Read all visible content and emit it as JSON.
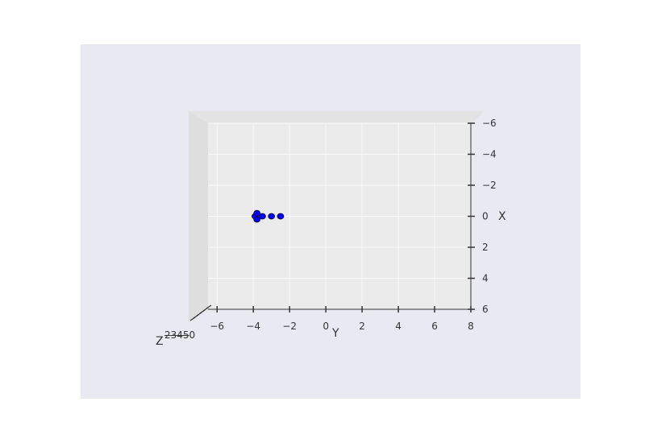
{
  "chart_data": {
    "type": "scatter",
    "projection": "3d",
    "view": "top-down",
    "title": "",
    "xlabel": "X",
    "ylabel": "Y",
    "zlabel": "Z",
    "x_ticks": [
      "−6",
      "−4",
      "−2",
      "0",
      "2",
      "4",
      "6"
    ],
    "y_ticks": [
      "−6",
      "−4",
      "−2",
      "0",
      "2",
      "4",
      "6",
      "8"
    ],
    "z_tick_text": "2̶3̶4̶5̶0",
    "xlim": [
      -6,
      6
    ],
    "ylim": [
      -6.5,
      8
    ],
    "grid": true,
    "colors": {
      "figure_background": "#ffffff",
      "axes_background": "#e9e9f1",
      "pane_background": "#ebebeb",
      "pane_side": "#dedede",
      "grid": "#fafafa",
      "marker_fill": "#0000ff",
      "marker_edge": "#000033",
      "text": "#333333"
    },
    "series": [
      {
        "values": [
          {
            "y": -3.9,
            "x": 0
          },
          {
            "y": -3.8,
            "x": -0.2
          },
          {
            "y": -3.8,
            "x": 0.2
          },
          {
            "y": -3.5,
            "x": 0
          },
          {
            "y": -3.0,
            "x": 0
          },
          {
            "y": -2.5,
            "x": 0
          }
        ]
      }
    ]
  }
}
